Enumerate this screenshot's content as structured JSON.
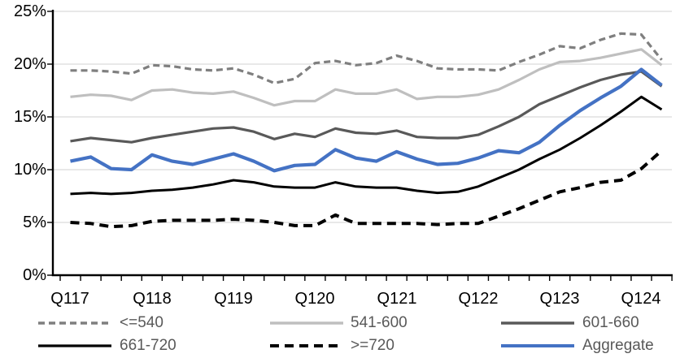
{
  "chart_data": {
    "type": "line",
    "title": "",
    "ylim": [
      0,
      25
    ],
    "grid": "horizontal",
    "legend_position": "bottom",
    "y_axis_labels": [
      "25%",
      "20%",
      "15%",
      "10%",
      "5%",
      "0%"
    ],
    "x_axis_labels": [
      "Q117",
      "Q118",
      "Q119",
      "Q120",
      "Q121",
      "Q122",
      "Q123",
      "Q124"
    ],
    "categories": [
      "Q117",
      "Q217",
      "Q317",
      "Q417",
      "Q118",
      "Q218",
      "Q318",
      "Q418",
      "Q119",
      "Q219",
      "Q319",
      "Q419",
      "Q120",
      "Q220",
      "Q320",
      "Q420",
      "Q121",
      "Q221",
      "Q321",
      "Q421",
      "Q122",
      "Q222",
      "Q322",
      "Q422",
      "Q123",
      "Q223",
      "Q323",
      "Q423",
      "Q124",
      "Q224"
    ],
    "unit": "%",
    "series": [
      {
        "name": "<=540",
        "color": "#7f7f7f",
        "style": "dashed",
        "dash": "8 5",
        "width": 3.2,
        "values": [
          19.4,
          19.4,
          19.3,
          19.1,
          19.9,
          19.8,
          19.5,
          19.4,
          19.6,
          19.0,
          18.2,
          18.6,
          20.1,
          20.3,
          19.9,
          20.1,
          20.8,
          20.3,
          19.6,
          19.5,
          19.5,
          19.4,
          20.2,
          20.9,
          21.7,
          21.5,
          22.3,
          22.9,
          22.8,
          20.4
        ]
      },
      {
        "name": "541-600",
        "color": "#bfbfbf",
        "style": "solid",
        "dash": "",
        "width": 3.2,
        "values": [
          16.9,
          17.1,
          17.0,
          16.6,
          17.5,
          17.6,
          17.3,
          17.2,
          17.4,
          16.8,
          16.1,
          16.5,
          16.5,
          17.6,
          17.2,
          17.2,
          17.6,
          16.7,
          16.9,
          16.9,
          17.1,
          17.6,
          18.5,
          19.5,
          20.2,
          20.3,
          20.6,
          21.0,
          21.4,
          19.9
        ]
      },
      {
        "name": "601-660",
        "color": "#595959",
        "style": "solid",
        "dash": "",
        "width": 3.2,
        "values": [
          12.7,
          13.0,
          12.8,
          12.6,
          13.0,
          13.3,
          13.6,
          13.9,
          14.0,
          13.6,
          12.9,
          13.4,
          13.1,
          13.9,
          13.5,
          13.4,
          13.7,
          13.1,
          13.0,
          13.0,
          13.3,
          14.1,
          15.0,
          16.2,
          17.0,
          17.8,
          18.5,
          19.0,
          19.3,
          17.9
        ]
      },
      {
        "name": "661-720",
        "color": "#000000",
        "style": "solid",
        "dash": "",
        "width": 3,
        "values": [
          7.7,
          7.8,
          7.7,
          7.8,
          8.0,
          8.1,
          8.3,
          8.6,
          9.0,
          8.8,
          8.4,
          8.3,
          8.3,
          8.8,
          8.4,
          8.3,
          8.3,
          8.0,
          7.8,
          7.9,
          8.4,
          9.2,
          10.0,
          11.0,
          11.9,
          13.0,
          14.2,
          15.5,
          16.9,
          15.7
        ]
      },
      {
        "name": ">=720",
        "color": "#000000",
        "style": "dashed",
        "dash": "11 7",
        "width": 4,
        "values": [
          5.0,
          4.9,
          4.6,
          4.7,
          5.1,
          5.2,
          5.2,
          5.2,
          5.3,
          5.2,
          5.0,
          4.7,
          4.7,
          5.7,
          4.9,
          4.9,
          4.9,
          4.9,
          4.8,
          4.9,
          4.9,
          5.6,
          6.3,
          7.1,
          7.9,
          8.3,
          8.8,
          9.0,
          10.1,
          11.8
        ]
      },
      {
        "name": "Aggregate",
        "color": "#4472c4",
        "style": "solid",
        "dash": "",
        "width": 4.2,
        "values": [
          10.8,
          11.2,
          10.1,
          10.0,
          11.4,
          10.8,
          10.5,
          11.0,
          11.5,
          10.8,
          9.9,
          10.4,
          10.5,
          11.9,
          11.1,
          10.8,
          11.7,
          11.0,
          10.5,
          10.6,
          11.1,
          11.8,
          11.6,
          12.6,
          14.2,
          15.6,
          16.8,
          17.9,
          19.5,
          18.0
        ]
      }
    ]
  }
}
